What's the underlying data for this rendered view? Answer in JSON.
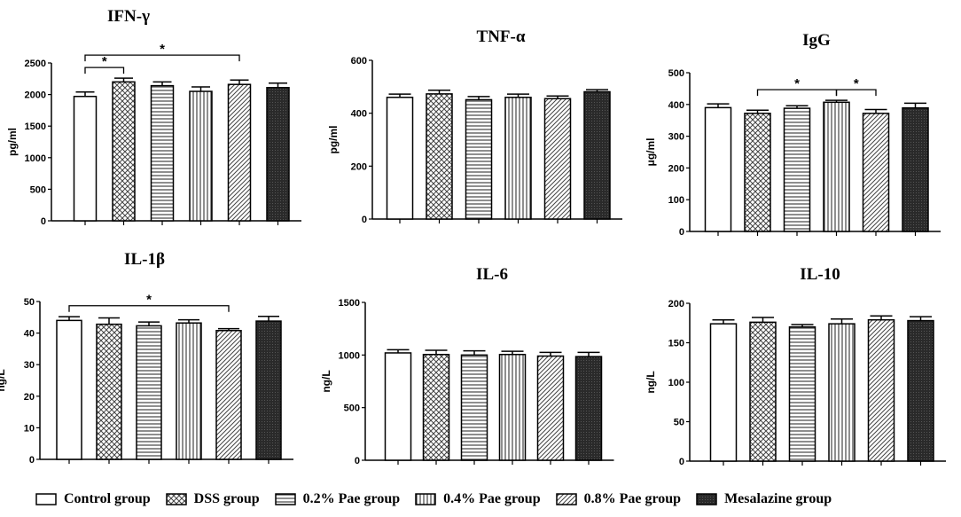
{
  "groups": [
    {
      "label": "Control group",
      "pattern": "none"
    },
    {
      "label": "DSS group",
      "pattern": "crosshatch"
    },
    {
      "label": "0.2% Pae group",
      "pattern": "horizontal"
    },
    {
      "label": "0.4% Pae group",
      "pattern": "vertical"
    },
    {
      "label": "0.8% Pae group",
      "pattern": "diagonal"
    },
    {
      "label": "Mesalazine group",
      "pattern": "dark"
    }
  ],
  "chart_data": [
    {
      "type": "bar",
      "title": "IFN-γ",
      "ylabel": "pg/ml",
      "ylim": [
        0,
        2500
      ],
      "yticks": [
        0,
        500,
        1000,
        1500,
        2000,
        2500
      ],
      "values": [
        1970,
        2200,
        2140,
        2050,
        2160,
        2110
      ],
      "errors": [
        70,
        60,
        60,
        70,
        70,
        70
      ],
      "significance": [
        {
          "from": 0,
          "to": 1,
          "label": "*"
        },
        {
          "from": 0,
          "to": 4,
          "label": "*"
        }
      ]
    },
    {
      "type": "bar",
      "title": "TNF-α",
      "ylabel": "pg/ml",
      "ylim": [
        0,
        600
      ],
      "yticks": [
        0,
        200,
        400,
        600
      ],
      "values": [
        460,
        473,
        451,
        460,
        455,
        481
      ],
      "errors": [
        12,
        14,
        12,
        12,
        10,
        8
      ],
      "significance": []
    },
    {
      "type": "bar",
      "title": "IgG",
      "ylabel": "μg/ml",
      "ylim": [
        0,
        500
      ],
      "yticks": [
        0,
        100,
        200,
        300,
        400,
        500
      ],
      "values": [
        390,
        372,
        388,
        407,
        372,
        389
      ],
      "errors": [
        12,
        10,
        8,
        6,
        12,
        15
      ],
      "significance": [
        {
          "from": 1,
          "to": 3,
          "label": "*"
        },
        {
          "from": 3,
          "to": 4,
          "label": "*"
        }
      ]
    },
    {
      "type": "bar",
      "title": "IL-1β",
      "ylabel": "ng/L",
      "ylim": [
        0,
        50
      ],
      "yticks": [
        0,
        10,
        20,
        30,
        40,
        50
      ],
      "values": [
        44,
        42.8,
        42.3,
        43.2,
        40.8,
        43.8
      ],
      "errors": [
        1.2,
        2.0,
        1.2,
        1.0,
        0.6,
        1.5
      ],
      "significance": [
        {
          "from": 0,
          "to": 4,
          "label": "*"
        }
      ]
    },
    {
      "type": "bar",
      "title": "IL-6",
      "ylabel": "ng/L",
      "ylim": [
        0,
        1500
      ],
      "yticks": [
        0,
        500,
        1000,
        1500
      ],
      "values": [
        1020,
        1005,
        1000,
        1005,
        990,
        985
      ],
      "errors": [
        30,
        40,
        40,
        30,
        35,
        40
      ],
      "significance": []
    },
    {
      "type": "bar",
      "title": "IL-10",
      "ylabel": "ng/L",
      "ylim": [
        0,
        200
      ],
      "yticks": [
        0,
        50,
        100,
        150,
        200
      ],
      "values": [
        174,
        176,
        170,
        174,
        179,
        178
      ],
      "errors": [
        5,
        6,
        3,
        6,
        5,
        5
      ],
      "significance": []
    }
  ]
}
